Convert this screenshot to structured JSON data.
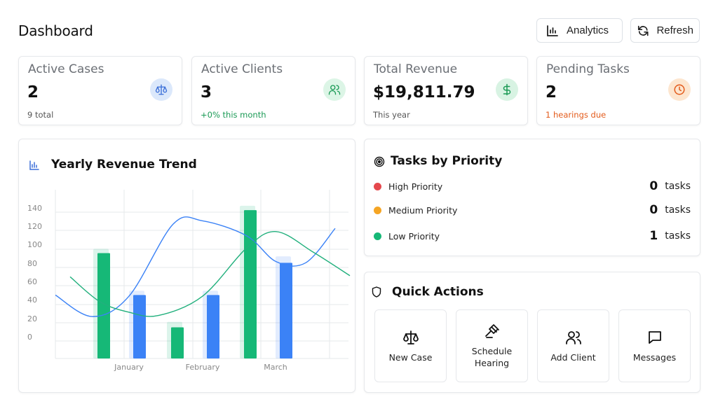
{
  "header": {
    "title": "Dashboard",
    "analytics_label": "Analytics",
    "refresh_label": "Refresh"
  },
  "stats": [
    {
      "label": "Active Cases",
      "value": "2",
      "sub": "9 total",
      "icon": "scales-icon",
      "badge_color": "#dbe8fb",
      "icon_color": "#3b6fd8"
    },
    {
      "label": "Active Clients",
      "value": "3",
      "sub": "+0% this month",
      "icon": "users-icon",
      "badge_color": "#dcf5e6",
      "icon_color": "#1a9a55"
    },
    {
      "label": "Total Revenue",
      "value": "$19,811.79",
      "sub": "This year",
      "icon": "dollar-icon",
      "badge_color": "#d8f3e3",
      "icon_color": "#1a9a55"
    },
    {
      "label": "Pending Tasks",
      "value": "2",
      "sub": "1 hearings due",
      "icon": "clock-icon",
      "badge_color": "#fde6cf",
      "icon_color": "#e35b1b"
    }
  ],
  "revenue_chart": {
    "title": "Yearly Revenue Trend"
  },
  "chart_data": {
    "type": "bar",
    "title": "Yearly Revenue Trend",
    "categories": [
      "January",
      "February",
      "March"
    ],
    "yticks": [
      0,
      20,
      40,
      60,
      80,
      100,
      120,
      140
    ],
    "ylim": [
      0,
      140
    ],
    "series": [
      {
        "color": "#16b877",
        "values": [
          98,
          29,
          138
        ]
      },
      {
        "color": "#3b82f6",
        "values": [
          59,
          59,
          89
        ]
      }
    ],
    "shadow_series": [
      {
        "color": "#16b877",
        "values": [
          102,
          34,
          142
        ]
      },
      {
        "color": "#3b82f6",
        "values": [
          63,
          63,
          95
        ]
      }
    ],
    "lines": [
      {
        "color": "#3b82f6",
        "points": [
          [
            -1.0,
            59
          ],
          [
            -0.5,
            39
          ],
          [
            0.0,
            58
          ],
          [
            0.6,
            125
          ],
          [
            1.0,
            128
          ],
          [
            1.6,
            114
          ],
          [
            2.0,
            90
          ],
          [
            2.4,
            89
          ],
          [
            2.8,
            121
          ]
        ]
      },
      {
        "color": "#22b07d",
        "points": [
          [
            -0.8,
            76
          ],
          [
            -0.4,
            53
          ],
          [
            0.0,
            43
          ],
          [
            0.4,
            40
          ],
          [
            1.0,
            58
          ],
          [
            1.6,
            103
          ],
          [
            2.0,
            118
          ],
          [
            2.5,
            99
          ],
          [
            3.0,
            77
          ]
        ]
      }
    ],
    "grid": true
  },
  "priority": {
    "title": "Tasks by Priority",
    "unit": "tasks",
    "rows": [
      {
        "name": "High Priority",
        "count": "0",
        "color": "#e5484d"
      },
      {
        "name": "Medium Priority",
        "count": "0",
        "color": "#f5a524"
      },
      {
        "name": "Low Priority",
        "count": "1",
        "color": "#16b877"
      }
    ]
  },
  "quick_actions": {
    "title": "Quick Actions",
    "items": [
      {
        "label": "New Case",
        "icon": "scales-icon"
      },
      {
        "label": "Schedule Hearing",
        "icon": "gavel-icon"
      },
      {
        "label": "Add Client",
        "icon": "user-plus-icon"
      },
      {
        "label": "Messages",
        "icon": "message-icon"
      }
    ]
  }
}
